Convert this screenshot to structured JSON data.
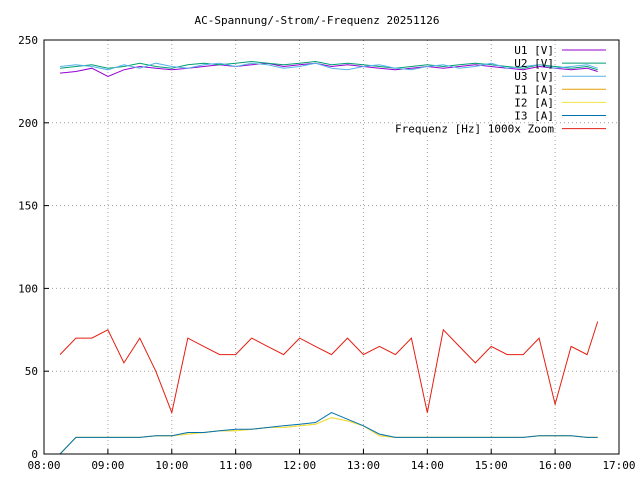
{
  "chart_data": {
    "type": "line",
    "title": "AC-Spannung/-Strom/-Frequenz 20251126",
    "xlabel": "",
    "ylabel": "",
    "xlim": [
      "08:00",
      "17:00"
    ],
    "ylim": [
      0,
      250
    ],
    "x_ticks": [
      "08:00",
      "09:00",
      "10:00",
      "11:00",
      "12:00",
      "13:00",
      "14:00",
      "15:00",
      "16:00",
      "17:00"
    ],
    "y_ticks": [
      "0",
      "50",
      "100",
      "150",
      "200",
      "250"
    ],
    "grid": true,
    "legend_position": "top-right",
    "x": [
      "08:15",
      "08:30",
      "08:45",
      "09:00",
      "09:15",
      "09:30",
      "09:45",
      "10:00",
      "10:15",
      "10:30",
      "10:45",
      "11:00",
      "11:15",
      "11:30",
      "11:45",
      "12:00",
      "12:15",
      "12:30",
      "12:45",
      "13:00",
      "13:15",
      "13:30",
      "13:45",
      "14:00",
      "14:15",
      "14:30",
      "14:45",
      "15:00",
      "15:15",
      "15:30",
      "15:45",
      "16:00",
      "16:15",
      "16:30",
      "16:40"
    ],
    "series": [
      {
        "name": "U1 [V]",
        "color": "#9400d3",
        "values": [
          230,
          231,
          233,
          228,
          232,
          234,
          233,
          232,
          233,
          234,
          235,
          234,
          235,
          236,
          234,
          235,
          236,
          234,
          235,
          234,
          233,
          232,
          233,
          234,
          233,
          234,
          235,
          234,
          233,
          232,
          234,
          233,
          232,
          233,
          231
        ]
      },
      {
        "name": "U2 [V]",
        "color": "#009e73",
        "values": [
          233,
          234,
          235,
          233,
          234,
          236,
          234,
          233,
          235,
          236,
          235,
          236,
          237,
          236,
          235,
          236,
          237,
          235,
          236,
          235,
          234,
          233,
          234,
          235,
          234,
          235,
          236,
          235,
          234,
          233,
          235,
          234,
          233,
          234,
          232
        ]
      },
      {
        "name": "U3 [V]",
        "color": "#56b4e9",
        "values": [
          234,
          235,
          234,
          232,
          235,
          233,
          236,
          234,
          233,
          235,
          236,
          234,
          236,
          235,
          233,
          234,
          236,
          233,
          232,
          234,
          235,
          233,
          232,
          234,
          235,
          233,
          234,
          236,
          233,
          234,
          235,
          233,
          234,
          235,
          233
        ]
      },
      {
        "name": "I1 [A]",
        "color": "#e69f00",
        "values": [
          0,
          10,
          10,
          10,
          10,
          10,
          11,
          11,
          12,
          13,
          14,
          14,
          15,
          16,
          16,
          17,
          18,
          22,
          20,
          17,
          11,
          10,
          10,
          10,
          10,
          10,
          10,
          10,
          10,
          10,
          11,
          11,
          11,
          10,
          10
        ]
      },
      {
        "name": "I2 [A]",
        "color": "#f0e442",
        "values": [
          0,
          10,
          10,
          10,
          10,
          10,
          11,
          11,
          12,
          13,
          14,
          14,
          15,
          16,
          16,
          17,
          18,
          22,
          20,
          17,
          11,
          10,
          10,
          10,
          10,
          10,
          10,
          10,
          10,
          10,
          11,
          11,
          11,
          10,
          10
        ]
      },
      {
        "name": "I3 [A]",
        "color": "#0072b2",
        "values": [
          0,
          10,
          10,
          10,
          10,
          10,
          11,
          11,
          13,
          13,
          14,
          15,
          15,
          16,
          17,
          18,
          19,
          25,
          21,
          17,
          12,
          10,
          10,
          10,
          10,
          10,
          10,
          10,
          10,
          10,
          11,
          11,
          11,
          10,
          10
        ]
      },
      {
        "name": "Frequenz [Hz] 1000x Zoom",
        "color": "#e51e10",
        "values": [
          60,
          70,
          70,
          75,
          55,
          70,
          50,
          25,
          70,
          65,
          60,
          60,
          70,
          65,
          60,
          70,
          65,
          60,
          70,
          60,
          65,
          60,
          70,
          25,
          75,
          65,
          55,
          65,
          60,
          60,
          70,
          30,
          65,
          60,
          80
        ]
      }
    ]
  }
}
